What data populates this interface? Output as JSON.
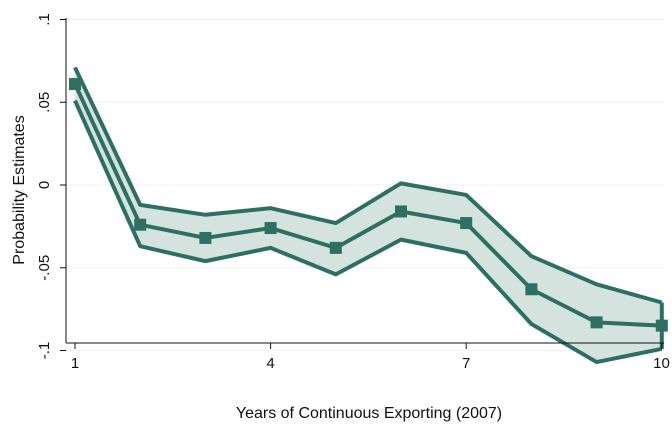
{
  "chart_data": {
    "type": "line",
    "xlabel": "Years of Continuous Exporting (2007)",
    "ylabel": "Probability Estimates",
    "xlim": [
      1,
      10
    ],
    "ylim": [
      -0.1,
      0.1
    ],
    "x_ticks": [
      1,
      4,
      7,
      10
    ],
    "x_tick_labels": [
      "1",
      "4",
      "7",
      "10"
    ],
    "y_ticks": [
      0.1,
      0.05,
      0,
      -0.05,
      -0.1
    ],
    "y_tick_labels": [
      ".1",
      ".05",
      "0",
      "-.05",
      "-.1"
    ],
    "grid": true,
    "x": [
      1,
      2,
      3,
      4,
      5,
      6,
      7,
      8,
      9,
      10
    ],
    "series": [
      {
        "values": [
          0.061,
          -0.024,
          -0.032,
          -0.026,
          -0.038,
          -0.016,
          -0.023,
          -0.063,
          -0.083,
          -0.085
        ]
      }
    ],
    "band": {
      "upper": [
        0.071,
        -0.012,
        -0.018,
        -0.014,
        -0.023,
        0.001,
        -0.006,
        -0.043,
        -0.06,
        -0.071
      ],
      "lower": [
        0.051,
        -0.037,
        -0.046,
        -0.038,
        -0.054,
        -0.033,
        -0.041,
        -0.084,
        -0.107,
        -0.099
      ]
    },
    "colors": {
      "line": "#2f6e62",
      "band_fill": "#d5e3df",
      "marker": "#2f6e62",
      "grid": "#eef0f1"
    }
  }
}
